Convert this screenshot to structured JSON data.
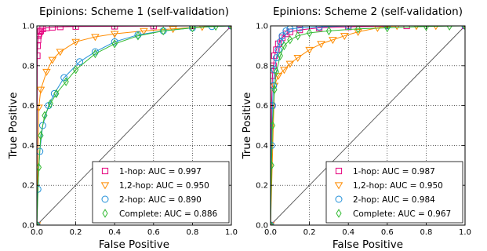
{
  "chart_data": [
    {
      "type": "line",
      "title": "Epinions: Scheme 1 (self-validation)",
      "xlabel": "False Positive",
      "ylabel": "True Positive",
      "xlim": [
        0,
        1
      ],
      "ylim": [
        0,
        1
      ],
      "xticks": [
        "0.0",
        "0.2",
        "0.4",
        "0.6",
        "0.8",
        "1.0"
      ],
      "yticks": [
        "0.0",
        "0.2",
        "0.4",
        "0.6",
        "0.8",
        "1.0"
      ],
      "grid": true,
      "legend_position": "bottom-right",
      "diagonal": true,
      "series": [
        {
          "name": "1-hop: AUC = 0.997",
          "color": "#e6007e",
          "marker": "square",
          "x": [
            0.0,
            0.002,
            0.004,
            0.006,
            0.008,
            0.01,
            0.015,
            0.02,
            0.03,
            0.05,
            0.08,
            0.12,
            0.2,
            0.4,
            0.6,
            0.8,
            1.0
          ],
          "y": [
            0.0,
            0.85,
            0.9,
            0.93,
            0.95,
            0.96,
            0.97,
            0.975,
            0.985,
            0.99,
            0.993,
            0.995,
            0.997,
            0.998,
            0.999,
            1.0,
            1.0
          ]
        },
        {
          "name": "1,2-hop: AUC = 0.950",
          "color": "#ff8c00",
          "marker": "triangle-down",
          "x": [
            0.0,
            0.01,
            0.02,
            0.05,
            0.08,
            0.12,
            0.2,
            0.3,
            0.4,
            0.55,
            0.7,
            0.85,
            1.0
          ],
          "y": [
            0.0,
            0.59,
            0.68,
            0.77,
            0.83,
            0.87,
            0.92,
            0.945,
            0.96,
            0.975,
            0.985,
            0.995,
            1.0
          ]
        },
        {
          "name": "2-hop: AUC = 0.890",
          "color": "#1f8fd8",
          "marker": "circle",
          "x": [
            0.0,
            0.005,
            0.015,
            0.03,
            0.06,
            0.09,
            0.14,
            0.22,
            0.3,
            0.4,
            0.52,
            0.65,
            0.8,
            0.9,
            1.0
          ],
          "y": [
            0.0,
            0.18,
            0.37,
            0.5,
            0.6,
            0.66,
            0.74,
            0.82,
            0.87,
            0.92,
            0.955,
            0.975,
            0.99,
            0.997,
            1.0
          ]
        },
        {
          "name": "Complete: AUC = 0.886",
          "color": "#33bb33",
          "marker": "diamond",
          "x": [
            0.0,
            0.01,
            0.02,
            0.04,
            0.07,
            0.1,
            0.15,
            0.2,
            0.3,
            0.4,
            0.52,
            0.65,
            0.8,
            0.92,
            1.0
          ],
          "y": [
            0.0,
            0.29,
            0.45,
            0.55,
            0.61,
            0.66,
            0.72,
            0.78,
            0.86,
            0.91,
            0.95,
            0.975,
            0.99,
            0.998,
            1.0
          ]
        }
      ]
    },
    {
      "type": "line",
      "title": "Epinions: Scheme 2 (self-validation)",
      "xlabel": "False Positive",
      "ylabel": "True Positive",
      "xlim": [
        0,
        1
      ],
      "ylim": [
        0,
        1
      ],
      "xticks": [
        "0.0",
        "0.2",
        "0.4",
        "0.6",
        "0.8",
        "1.0"
      ],
      "yticks": [
        "0.0",
        "0.2",
        "0.4",
        "0.6",
        "0.8",
        "1.0"
      ],
      "grid": true,
      "legend_position": "bottom-right",
      "diagonal": true,
      "series": [
        {
          "name": "1-hop: AUC = 0.987",
          "color": "#e6007e",
          "marker": "square",
          "x": [
            0.0,
            0.005,
            0.01,
            0.015,
            0.02,
            0.03,
            0.04,
            0.06,
            0.08,
            0.1,
            0.15,
            0.25,
            0.4,
            0.7,
            1.0
          ],
          "y": [
            0.0,
            0.6,
            0.75,
            0.8,
            0.85,
            0.88,
            0.91,
            0.94,
            0.96,
            0.97,
            0.98,
            0.99,
            0.995,
            1.0,
            1.0
          ]
        },
        {
          "name": "1,2-hop: AUC = 0.950",
          "color": "#ff8c00",
          "marker": "triangle-down",
          "x": [
            0.0,
            0.02,
            0.04,
            0.07,
            0.1,
            0.14,
            0.2,
            0.26,
            0.32,
            0.38,
            0.45,
            0.55,
            0.65,
            0.75,
            0.85,
            1.0
          ],
          "y": [
            0.0,
            0.7,
            0.75,
            0.78,
            0.81,
            0.84,
            0.88,
            0.91,
            0.93,
            0.95,
            0.97,
            0.99,
            1.0,
            1.0,
            1.0,
            1.0
          ]
        },
        {
          "name": "2-hop: AUC = 0.984",
          "color": "#1f8fd8",
          "marker": "circle",
          "x": [
            0.0,
            0.005,
            0.01,
            0.015,
            0.02,
            0.03,
            0.04,
            0.05,
            0.06,
            0.08,
            0.1,
            0.15,
            0.25,
            0.4,
            0.6,
            1.0
          ],
          "y": [
            0.0,
            0.4,
            0.6,
            0.7,
            0.78,
            0.84,
            0.88,
            0.92,
            0.95,
            0.975,
            0.985,
            0.99,
            0.995,
            1.0,
            1.0,
            1.0
          ]
        },
        {
          "name": "Complete: AUC = 0.967",
          "color": "#33bb33",
          "marker": "diamond",
          "x": [
            0.0,
            0.005,
            0.01,
            0.02,
            0.03,
            0.05,
            0.07,
            0.1,
            0.14,
            0.2,
            0.3,
            0.45,
            0.6,
            0.8,
            0.92,
            1.0
          ],
          "y": [
            0.0,
            0.3,
            0.5,
            0.68,
            0.77,
            0.85,
            0.9,
            0.93,
            0.95,
            0.965,
            0.975,
            0.985,
            0.99,
            0.997,
            0.999,
            1.0
          ]
        }
      ]
    }
  ]
}
